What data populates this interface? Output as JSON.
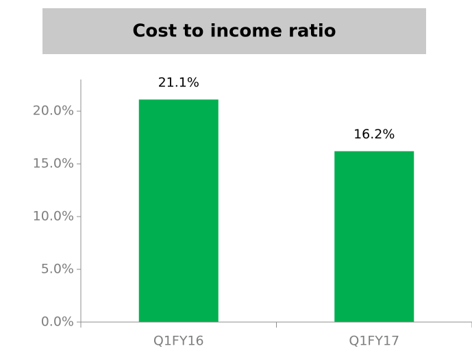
{
  "chart_data": {
    "type": "bar",
    "title": "Cost to income ratio",
    "categories": [
      "Q1FY16",
      "Q1FY17"
    ],
    "values": [
      21.1,
      16.2
    ],
    "value_labels": [
      "21.1%",
      "16.2%"
    ],
    "color": "#00b050",
    "ylim": [
      0,
      23
    ],
    "yticks": [
      {
        "value": 0,
        "label": "0.0%"
      },
      {
        "value": 5,
        "label": "5.0%"
      },
      {
        "value": 10,
        "label": "10.0%"
      },
      {
        "value": 15,
        "label": "15.0%"
      },
      {
        "value": 20,
        "label": "20.0%"
      }
    ],
    "grid": false
  }
}
